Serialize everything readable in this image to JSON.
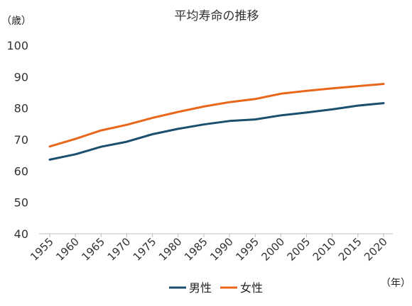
{
  "chart_data": {
    "type": "line",
    "title": "平均寿命の推移",
    "ylabel": "（歳）",
    "xlabel": "（年）",
    "x": [
      1955,
      1960,
      1965,
      1970,
      1975,
      1980,
      1985,
      1990,
      1995,
      2000,
      2005,
      2010,
      2015,
      2020
    ],
    "ylim": [
      40,
      100
    ],
    "yticks": [
      40,
      50,
      60,
      70,
      80,
      90,
      100
    ],
    "grid": false,
    "legend_position": "bottom",
    "series": [
      {
        "name": "男性",
        "color": "#1b4f6e",
        "values": [
          63.6,
          65.3,
          67.7,
          69.3,
          71.7,
          73.4,
          74.8,
          75.9,
          76.4,
          77.7,
          78.6,
          79.6,
          80.8,
          81.6
        ]
      },
      {
        "name": "女性",
        "color": "#e8671b",
        "values": [
          67.8,
          70.2,
          72.9,
          74.7,
          76.9,
          78.8,
          80.5,
          81.9,
          82.9,
          84.6,
          85.5,
          86.3,
          87.0,
          87.7
        ]
      }
    ]
  }
}
